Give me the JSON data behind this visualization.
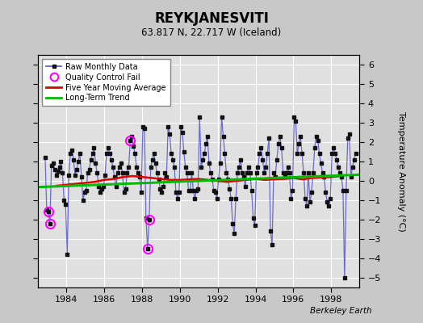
{
  "title": "REYKJANESVITI",
  "subtitle": "63.817 N, 22.717 W (Iceland)",
  "ylabel": "Temperature Anomaly (°C)",
  "attribution": "Berkeley Earth",
  "ylim": [
    -5.5,
    6.5
  ],
  "xlim": [
    1982.5,
    1999.5
  ],
  "xticks": [
    1984,
    1986,
    1988,
    1990,
    1992,
    1994,
    1996,
    1998
  ],
  "yticks": [
    -5,
    -4,
    -3,
    -2,
    -1,
    0,
    1,
    2,
    3,
    4,
    5,
    6
  ],
  "bg_color": "#c8c8c8",
  "plot_bg_color": "#e0e0e0",
  "grid_color": "#ffffff",
  "raw_line_color": "#5555cc",
  "raw_marker_color": "#111111",
  "ma_color": "#dd0000",
  "trend_color": "#00bb00",
  "qc_color": "#ff00ff",
  "raw_data_times": [
    1982.875,
    1982.958,
    1983.042,
    1983.125,
    1983.208,
    1983.292,
    1983.375,
    1983.458,
    1983.542,
    1983.625,
    1983.708,
    1983.792,
    1983.875,
    1983.958,
    1984.042,
    1984.125,
    1984.208,
    1984.292,
    1984.375,
    1984.458,
    1984.542,
    1984.625,
    1984.708,
    1984.792,
    1984.875,
    1984.958,
    1985.042,
    1985.125,
    1985.208,
    1985.292,
    1985.375,
    1985.458,
    1985.542,
    1985.625,
    1985.708,
    1985.792,
    1985.875,
    1985.958,
    1986.042,
    1986.125,
    1986.208,
    1986.292,
    1986.375,
    1986.458,
    1986.542,
    1986.625,
    1986.708,
    1986.792,
    1986.875,
    1986.958,
    1987.042,
    1987.125,
    1987.208,
    1987.292,
    1987.375,
    1987.458,
    1987.542,
    1987.625,
    1987.708,
    1987.792,
    1987.875,
    1987.958,
    1988.042,
    1988.125,
    1988.208,
    1988.292,
    1988.375,
    1988.458,
    1988.542,
    1988.625,
    1988.708,
    1988.792,
    1988.875,
    1988.958,
    1989.042,
    1989.125,
    1989.208,
    1989.292,
    1989.375,
    1989.458,
    1989.542,
    1989.625,
    1989.708,
    1989.792,
    1989.875,
    1989.958,
    1990.042,
    1990.125,
    1990.208,
    1990.292,
    1990.375,
    1990.458,
    1990.542,
    1990.625,
    1990.708,
    1990.792,
    1990.875,
    1990.958,
    1991.042,
    1991.125,
    1991.208,
    1991.292,
    1991.375,
    1991.458,
    1991.542,
    1991.625,
    1991.708,
    1991.792,
    1991.875,
    1991.958,
    1992.042,
    1992.125,
    1992.208,
    1992.292,
    1992.375,
    1992.458,
    1992.542,
    1992.625,
    1992.708,
    1992.792,
    1992.875,
    1992.958,
    1993.042,
    1993.125,
    1993.208,
    1993.292,
    1993.375,
    1993.458,
    1993.542,
    1993.625,
    1993.708,
    1993.792,
    1993.875,
    1993.958,
    1994.042,
    1994.125,
    1994.208,
    1994.292,
    1994.375,
    1994.458,
    1994.542,
    1994.625,
    1994.708,
    1994.792,
    1994.875,
    1994.958,
    1995.042,
    1995.125,
    1995.208,
    1995.292,
    1995.375,
    1995.458,
    1995.542,
    1995.625,
    1995.708,
    1995.792,
    1995.875,
    1995.958,
    1996.042,
    1996.125,
    1996.208,
    1996.292,
    1996.375,
    1996.458,
    1996.542,
    1996.625,
    1996.708,
    1996.792,
    1996.875,
    1996.958,
    1997.042,
    1997.125,
    1997.208,
    1997.292,
    1997.375,
    1997.458,
    1997.542,
    1997.625,
    1997.708,
    1997.792,
    1997.875,
    1997.958,
    1998.042,
    1998.125,
    1998.208,
    1998.292,
    1998.375,
    1998.458,
    1998.542,
    1998.625,
    1998.708,
    1998.792,
    1998.875,
    1998.958,
    1999.042,
    1999.125,
    1999.208,
    1999.292
  ],
  "raw_data_values": [
    1.2,
    -1.5,
    -1.6,
    -2.2,
    0.8,
    0.9,
    0.6,
    0.3,
    0.5,
    0.7,
    1.0,
    0.4,
    -1.0,
    -1.2,
    -3.8,
    0.3,
    1.4,
    1.6,
    1.1,
    0.3,
    0.6,
    1.0,
    1.4,
    0.2,
    -1.0,
    -0.6,
    -0.5,
    0.4,
    0.6,
    1.1,
    1.4,
    1.7,
    0.9,
    0.4,
    -0.3,
    -0.6,
    -0.4,
    -0.3,
    0.3,
    1.4,
    1.7,
    1.4,
    1.1,
    0.7,
    0.2,
    -0.3,
    0.4,
    0.7,
    0.9,
    0.4,
    -0.6,
    -0.4,
    0.4,
    0.7,
    2.1,
    2.3,
    1.8,
    1.4,
    0.7,
    0.4,
    0.2,
    -0.6,
    2.8,
    2.7,
    -1.9,
    -3.5,
    -2.0,
    0.7,
    1.1,
    1.4,
    0.9,
    0.4,
    0.1,
    -0.4,
    -0.6,
    -0.3,
    0.4,
    0.2,
    2.8,
    2.4,
    1.4,
    1.1,
    0.7,
    -0.6,
    -0.9,
    -0.6,
    2.8,
    2.5,
    1.5,
    0.7,
    0.4,
    -0.5,
    -0.5,
    0.4,
    -0.5,
    -0.9,
    -0.5,
    -0.4,
    3.3,
    0.7,
    1.1,
    1.4,
    1.9,
    2.3,
    0.9,
    0.4,
    0.1,
    -0.5,
    -0.6,
    -0.9,
    0.1,
    0.9,
    3.3,
    2.3,
    1.4,
    0.4,
    0.1,
    -0.4,
    -0.9,
    -2.2,
    -2.7,
    -0.9,
    0.4,
    0.7,
    1.1,
    0.4,
    0.2,
    -0.3,
    0.4,
    0.7,
    0.4,
    -0.5,
    -1.9,
    -2.3,
    0.4,
    0.7,
    1.4,
    1.7,
    1.1,
    0.4,
    0.7,
    1.4,
    2.2,
    -2.6,
    -3.3,
    0.4,
    0.2,
    1.1,
    1.9,
    2.3,
    1.7,
    0.4,
    0.2,
    0.4,
    0.7,
    0.4,
    -0.9,
    -0.5,
    3.3,
    3.1,
    1.4,
    1.9,
    2.3,
    1.4,
    0.4,
    -0.9,
    -1.3,
    0.4,
    -1.1,
    -0.6,
    0.4,
    1.7,
    2.3,
    2.1,
    1.4,
    0.9,
    0.4,
    0.2,
    -0.6,
    -1.1,
    -1.3,
    -0.9,
    1.4,
    1.7,
    1.4,
    1.1,
    0.7,
    0.4,
    0.2,
    -0.5,
    -5.0,
    -0.5,
    2.2,
    2.4,
    0.2,
    0.7,
    1.1,
    1.4
  ],
  "qc_fail_times": [
    1983.042,
    1983.125,
    1987.375,
    1988.292,
    1988.375
  ],
  "qc_fail_values": [
    -1.6,
    -2.2,
    2.1,
    -3.5,
    -2.0
  ],
  "moving_avg_times": [
    1983.5,
    1984.0,
    1984.5,
    1985.0,
    1985.5,
    1986.0,
    1986.5,
    1987.0,
    1987.5,
    1988.0,
    1988.5,
    1989.0,
    1989.5,
    1990.0,
    1990.5,
    1991.0,
    1991.5,
    1992.0,
    1992.5,
    1993.0,
    1993.5,
    1994.0,
    1994.5,
    1995.0,
    1995.5,
    1996.0,
    1996.5,
    1997.0,
    1997.5,
    1998.0,
    1998.5
  ],
  "moving_avg_values": [
    -0.25,
    -0.2,
    -0.15,
    -0.1,
    -0.05,
    0.05,
    0.1,
    0.2,
    0.25,
    0.2,
    0.15,
    0.1,
    0.05,
    0.05,
    0.08,
    0.1,
    0.05,
    0.0,
    -0.05,
    0.0,
    0.05,
    0.1,
    0.05,
    0.08,
    0.1,
    0.15,
    0.08,
    0.15,
    0.18,
    0.2,
    0.25
  ],
  "trend_times": [
    1982.5,
    1999.5
  ],
  "trend_values": [
    -0.32,
    0.32
  ]
}
